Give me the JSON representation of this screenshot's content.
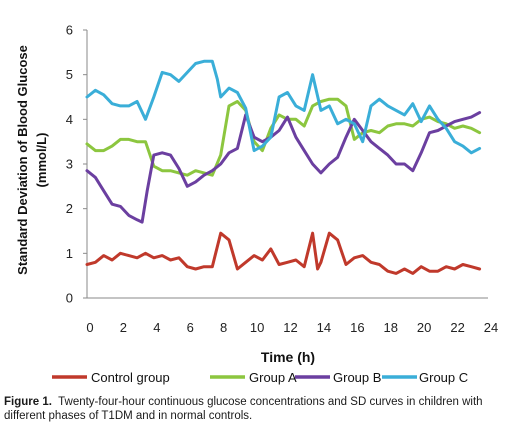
{
  "chart_data": {
    "type": "line",
    "ylabel_line1": "Standard Deviation of Blood Glucose",
    "ylabel_line2": "(mmol/L)",
    "xlabel": "Time (h)",
    "ylim": [
      0,
      6
    ],
    "xlim": [
      0,
      24
    ],
    "yticks": [
      "0",
      "1",
      "2",
      "3",
      "4",
      "5",
      "6"
    ],
    "xticks": [
      "0",
      "2",
      "4",
      "6",
      "8",
      "10",
      "12",
      "14",
      "16",
      "18",
      "20",
      "22",
      "24"
    ],
    "grid": false,
    "legend_position": "bottom",
    "series": [
      {
        "name": "Control group",
        "color": "#c0392b",
        "points": [
          [
            0,
            0.75
          ],
          [
            0.5,
            0.8
          ],
          [
            1,
            0.95
          ],
          [
            1.5,
            0.85
          ],
          [
            2,
            1.0
          ],
          [
            2.5,
            0.95
          ],
          [
            3,
            0.9
          ],
          [
            3.5,
            1.0
          ],
          [
            4,
            0.9
          ],
          [
            4.5,
            0.95
          ],
          [
            5,
            0.85
          ],
          [
            5.5,
            0.9
          ],
          [
            6,
            0.7
          ],
          [
            6.5,
            0.65
          ],
          [
            7,
            0.7
          ],
          [
            7.5,
            0.7
          ],
          [
            8,
            1.45
          ],
          [
            8.5,
            1.3
          ],
          [
            9,
            0.65
          ],
          [
            9.5,
            0.8
          ],
          [
            10,
            0.95
          ],
          [
            10.5,
            0.85
          ],
          [
            11,
            1.1
          ],
          [
            11.5,
            0.75
          ],
          [
            12,
            0.8
          ],
          [
            12.5,
            0.85
          ],
          [
            13,
            0.7
          ],
          [
            13.5,
            1.45
          ],
          [
            13.8,
            0.65
          ],
          [
            14,
            0.8
          ],
          [
            14.5,
            1.45
          ],
          [
            15,
            1.3
          ],
          [
            15.5,
            0.75
          ],
          [
            16,
            0.9
          ],
          [
            16.5,
            0.95
          ],
          [
            17,
            0.8
          ],
          [
            17.5,
            0.75
          ],
          [
            18,
            0.6
          ],
          [
            18.5,
            0.55
          ],
          [
            19,
            0.65
          ],
          [
            19.5,
            0.55
          ],
          [
            20,
            0.7
          ],
          [
            20.5,
            0.6
          ],
          [
            21,
            0.6
          ],
          [
            21.5,
            0.7
          ],
          [
            22,
            0.65
          ],
          [
            22.5,
            0.75
          ],
          [
            23,
            0.7
          ],
          [
            23.5,
            0.65
          ]
        ]
      },
      {
        "name": "Group A",
        "color": "#8cc63f",
        "points": [
          [
            0,
            3.45
          ],
          [
            0.5,
            3.3
          ],
          [
            1,
            3.3
          ],
          [
            1.5,
            3.4
          ],
          [
            2,
            3.55
          ],
          [
            2.5,
            3.55
          ],
          [
            3,
            3.5
          ],
          [
            3.5,
            3.5
          ],
          [
            4,
            2.95
          ],
          [
            4.5,
            2.85
          ],
          [
            5,
            2.85
          ],
          [
            5.5,
            2.8
          ],
          [
            6,
            2.75
          ],
          [
            6.5,
            2.85
          ],
          [
            7,
            2.8
          ],
          [
            7.5,
            2.75
          ],
          [
            8,
            3.2
          ],
          [
            8.5,
            4.3
          ],
          [
            9,
            4.4
          ],
          [
            9.5,
            4.2
          ],
          [
            10,
            3.5
          ],
          [
            10.5,
            3.3
          ],
          [
            11,
            3.8
          ],
          [
            11.5,
            4.1
          ],
          [
            12,
            4.0
          ],
          [
            12.5,
            4.0
          ],
          [
            13,
            3.85
          ],
          [
            13.5,
            4.3
          ],
          [
            14,
            4.4
          ],
          [
            14.5,
            4.45
          ],
          [
            15,
            4.45
          ],
          [
            15.5,
            4.3
          ],
          [
            16,
            3.55
          ],
          [
            16.5,
            3.7
          ],
          [
            17,
            3.75
          ],
          [
            17.5,
            3.7
          ],
          [
            18,
            3.85
          ],
          [
            18.5,
            3.9
          ],
          [
            19,
            3.9
          ],
          [
            19.5,
            3.85
          ],
          [
            20,
            4.0
          ],
          [
            20.5,
            4.05
          ],
          [
            21,
            3.95
          ],
          [
            21.5,
            3.9
          ],
          [
            22,
            3.8
          ],
          [
            22.5,
            3.85
          ],
          [
            23,
            3.8
          ],
          [
            23.5,
            3.7
          ]
        ]
      },
      {
        "name": "Group B",
        "color": "#6b3fa0",
        "points": [
          [
            0,
            2.85
          ],
          [
            0.5,
            2.7
          ],
          [
            1,
            2.4
          ],
          [
            1.5,
            2.1
          ],
          [
            2,
            2.05
          ],
          [
            2.5,
            1.85
          ],
          [
            3,
            1.75
          ],
          [
            3.3,
            1.7
          ],
          [
            3.6,
            2.4
          ],
          [
            4,
            3.2
          ],
          [
            4.5,
            3.25
          ],
          [
            5,
            3.2
          ],
          [
            5.5,
            2.9
          ],
          [
            6,
            2.5
          ],
          [
            6.5,
            2.6
          ],
          [
            7,
            2.75
          ],
          [
            7.5,
            2.85
          ],
          [
            8,
            3.0
          ],
          [
            8.5,
            3.25
          ],
          [
            9,
            3.35
          ],
          [
            9.5,
            4.1
          ],
          [
            10,
            3.6
          ],
          [
            10.5,
            3.5
          ],
          [
            11,
            3.6
          ],
          [
            11.5,
            3.75
          ],
          [
            12,
            4.05
          ],
          [
            12.5,
            3.6
          ],
          [
            13,
            3.3
          ],
          [
            13.5,
            3.0
          ],
          [
            14,
            2.8
          ],
          [
            14.5,
            3.0
          ],
          [
            15,
            3.15
          ],
          [
            15.5,
            3.6
          ],
          [
            16,
            4.0
          ],
          [
            16.5,
            3.75
          ],
          [
            17,
            3.5
          ],
          [
            17.5,
            3.35
          ],
          [
            18,
            3.2
          ],
          [
            18.5,
            3.0
          ],
          [
            19,
            3.0
          ],
          [
            19.5,
            2.85
          ],
          [
            20,
            3.25
          ],
          [
            20.5,
            3.7
          ],
          [
            21,
            3.75
          ],
          [
            21.5,
            3.85
          ],
          [
            22,
            3.95
          ],
          [
            22.5,
            4.0
          ],
          [
            23,
            4.05
          ],
          [
            23.5,
            4.15
          ]
        ]
      },
      {
        "name": "Group C",
        "color": "#3aaed8",
        "points": [
          [
            0,
            4.5
          ],
          [
            0.5,
            4.65
          ],
          [
            1,
            4.55
          ],
          [
            1.5,
            4.35
          ],
          [
            2,
            4.3
          ],
          [
            2.5,
            4.3
          ],
          [
            3,
            4.4
          ],
          [
            3.5,
            4.0
          ],
          [
            4,
            4.5
          ],
          [
            4.5,
            5.05
          ],
          [
            5,
            5.0
          ],
          [
            5.5,
            4.85
          ],
          [
            6,
            5.05
          ],
          [
            6.5,
            5.25
          ],
          [
            7,
            5.3
          ],
          [
            7.5,
            5.3
          ],
          [
            7.8,
            4.9
          ],
          [
            8,
            4.5
          ],
          [
            8.5,
            4.7
          ],
          [
            9,
            4.6
          ],
          [
            9.5,
            4.25
          ],
          [
            10,
            3.3
          ],
          [
            10.5,
            3.4
          ],
          [
            11,
            3.6
          ],
          [
            11.5,
            4.5
          ],
          [
            12,
            4.6
          ],
          [
            12.5,
            4.3
          ],
          [
            13,
            4.2
          ],
          [
            13.5,
            5.0
          ],
          [
            14,
            4.2
          ],
          [
            14.5,
            4.3
          ],
          [
            15,
            3.9
          ],
          [
            15.5,
            4.0
          ],
          [
            16,
            3.9
          ],
          [
            16.5,
            3.5
          ],
          [
            17,
            4.3
          ],
          [
            17.5,
            4.45
          ],
          [
            18,
            4.3
          ],
          [
            18.5,
            4.2
          ],
          [
            19,
            4.1
          ],
          [
            19.5,
            4.35
          ],
          [
            20,
            3.95
          ],
          [
            20.5,
            4.3
          ],
          [
            21,
            4.0
          ],
          [
            21.5,
            3.8
          ],
          [
            22,
            3.5
          ],
          [
            22.5,
            3.4
          ],
          [
            23,
            3.25
          ],
          [
            23.5,
            3.35
          ]
        ]
      }
    ]
  },
  "caption": {
    "label": "Figure 1.",
    "text": "Twenty-four-hour continuous glucose concentrations and SD curves in children with different phases of T1DM and in normal controls."
  }
}
